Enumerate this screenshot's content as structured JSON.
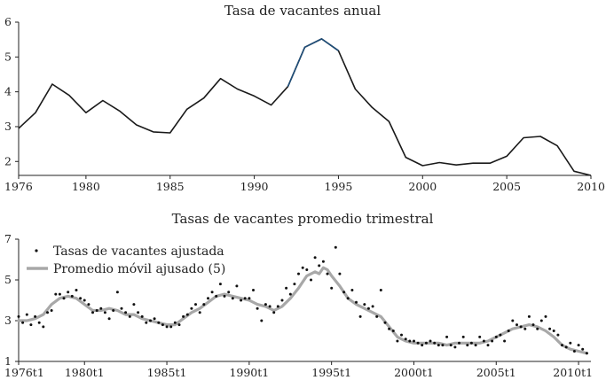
{
  "chart_data": [
    {
      "type": "line",
      "title": "Tasa de vacantes anual",
      "xlabel": "",
      "ylabel": "",
      "xlim": [
        1976,
        2010
      ],
      "ylim": [
        1.6,
        6
      ],
      "x_ticks": [
        1976,
        1980,
        1985,
        1990,
        1995,
        2000,
        2005,
        2010
      ],
      "x_tick_labels": [
        "1976",
        "1980",
        "1985",
        "1990",
        "1995",
        "2000",
        "2005",
        "2010"
      ],
      "y_ticks": [
        2,
        3,
        4,
        5,
        6
      ],
      "y_tick_labels": [
        "2",
        "3",
        "4",
        "5",
        "6"
      ],
      "series": [
        {
          "name": "Tasa de vacantes anual",
          "color": "#1a1a1a",
          "highlight_color": "#1f4e79",
          "highlight_range": [
            1992,
            1995
          ],
          "x": [
            1976,
            1977,
            1978,
            1979,
            1980,
            1981,
            1982,
            1983,
            1984,
            1985,
            1986,
            1987,
            1988,
            1989,
            1990,
            1991,
            1992,
            1993,
            1994,
            1995,
            1996,
            1997,
            1998,
            1999,
            2000,
            2001,
            2002,
            2003,
            2004,
            2005,
            2006,
            2007,
            2008,
            2009,
            2010
          ],
          "values": [
            2.95,
            3.4,
            4.22,
            3.9,
            3.4,
            3.75,
            3.45,
            3.05,
            2.85,
            2.82,
            3.5,
            3.82,
            4.38,
            4.08,
            3.88,
            3.62,
            4.15,
            5.28,
            5.52,
            5.18,
            4.08,
            3.55,
            3.15,
            2.12,
            1.88,
            1.97,
            1.9,
            1.95,
            1.95,
            2.15,
            2.68,
            2.72,
            2.45,
            1.72,
            1.6
          ]
        }
      ]
    },
    {
      "type": "scatter+line",
      "title": "Tasas de vacantes promedio trimestral",
      "xlabel": "",
      "ylabel": "",
      "xlim": [
        1976,
        2010.75
      ],
      "ylim": [
        1,
        7
      ],
      "x_ticks": [
        1976,
        1980,
        1985,
        1990,
        1995,
        2000,
        2005,
        2010
      ],
      "x_tick_labels": [
        "1976t1",
        "1980t1",
        "1985t1",
        "1990t1",
        "1995t1",
        "2000t1",
        "2005t1",
        "2010t1"
      ],
      "y_ticks": [
        1,
        3,
        5,
        7
      ],
      "y_tick_labels": [
        "1",
        "3",
        "5",
        "7"
      ],
      "legend": [
        {
          "label": "Tasas de vacantes ajustada",
          "marker": "dot",
          "color": "#111111"
        },
        {
          "label": "Promedio móvil ajusado (5)",
          "marker": "line",
          "color": "#a8a8a8"
        }
      ],
      "legend_position": "top-left",
      "series": [
        {
          "name": "Tasas de vacantes ajustada",
          "kind": "scatter",
          "color": "#111111",
          "x": [
            1976.0,
            1976.25,
            1976.5,
            1976.75,
            1977.0,
            1977.25,
            1977.5,
            1977.75,
            1978.0,
            1978.25,
            1978.5,
            1978.75,
            1979.0,
            1979.25,
            1979.5,
            1979.75,
            1980.0,
            1980.25,
            1980.5,
            1980.75,
            1981.0,
            1981.25,
            1981.5,
            1981.75,
            1982.0,
            1982.25,
            1982.5,
            1982.75,
            1983.0,
            1983.25,
            1983.5,
            1983.75,
            1984.0,
            1984.25,
            1984.5,
            1984.75,
            1985.0,
            1985.25,
            1985.5,
            1985.75,
            1986.0,
            1986.25,
            1986.5,
            1986.75,
            1987.0,
            1987.25,
            1987.5,
            1987.75,
            1988.0,
            1988.25,
            1988.5,
            1988.75,
            1989.0,
            1989.25,
            1989.5,
            1989.75,
            1990.0,
            1990.25,
            1990.5,
            1990.75,
            1991.0,
            1991.25,
            1991.5,
            1991.75,
            1992.0,
            1992.25,
            1992.5,
            1992.75,
            1993.0,
            1993.25,
            1993.5,
            1993.75,
            1994.0,
            1994.25,
            1994.5,
            1994.75,
            1995.0,
            1995.25,
            1995.5,
            1995.75,
            1996.0,
            1996.25,
            1996.5,
            1996.75,
            1997.0,
            1997.25,
            1997.5,
            1997.75,
            1998.0,
            1998.25,
            1998.5,
            1998.75,
            1999.0,
            1999.25,
            1999.5,
            1999.75,
            2000.0,
            2000.25,
            2000.5,
            2000.75,
            2001.0,
            2001.25,
            2001.5,
            2001.75,
            2002.0,
            2002.25,
            2002.5,
            2002.75,
            2003.0,
            2003.25,
            2003.5,
            2003.75,
            2004.0,
            2004.25,
            2004.5,
            2004.75,
            2005.0,
            2005.25,
            2005.5,
            2005.75,
            2006.0,
            2006.25,
            2006.5,
            2006.75,
            2007.0,
            2007.25,
            2007.5,
            2007.75,
            2008.0,
            2008.25,
            2008.5,
            2008.75,
            2009.0,
            2009.25,
            2009.5,
            2009.75,
            2010.0,
            2010.25,
            2010.5
          ],
          "values": [
            3.2,
            2.9,
            3.3,
            2.8,
            3.2,
            2.9,
            2.7,
            3.4,
            3.5,
            4.3,
            4.3,
            4.1,
            4.4,
            4.2,
            4.5,
            4.1,
            4.0,
            3.8,
            3.4,
            3.5,
            3.6,
            3.4,
            3.1,
            3.5,
            4.4,
            3.6,
            3.4,
            3.2,
            3.8,
            3.4,
            3.2,
            2.9,
            3.0,
            3.1,
            2.9,
            2.8,
            2.7,
            2.7,
            2.9,
            2.8,
            3.2,
            3.3,
            3.6,
            3.8,
            3.4,
            3.8,
            4.1,
            4.4,
            4.2,
            4.8,
            4.2,
            4.4,
            4.1,
            4.7,
            4.0,
            4.1,
            4.1,
            4.5,
            3.6,
            3.0,
            3.8,
            3.7,
            3.4,
            3.7,
            4.0,
            4.6,
            4.3,
            4.8,
            5.3,
            5.6,
            5.5,
            5.0,
            6.1,
            5.7,
            5.9,
            5.3,
            4.6,
            6.6,
            5.3,
            4.4,
            4.1,
            4.5,
            3.9,
            3.2,
            3.8,
            3.6,
            3.7,
            3.2,
            4.5,
            2.9,
            2.6,
            2.5,
            2.0,
            2.3,
            2.1,
            2.0,
            2.0,
            1.9,
            1.8,
            1.9,
            2.0,
            1.9,
            1.8,
            1.8,
            2.2,
            1.8,
            1.7,
            1.9,
            2.2,
            1.8,
            1.9,
            1.8,
            2.2,
            2.0,
            1.8,
            2.0,
            2.2,
            2.3,
            2.0,
            2.5,
            3.0,
            2.8,
            2.7,
            2.6,
            3.2,
            2.8,
            2.6,
            3.0,
            3.2,
            2.6,
            2.5,
            2.3,
            1.8,
            1.7,
            1.9,
            1.5,
            1.8,
            1.6,
            1.4
          ]
        },
        {
          "name": "Promedio móvil ajusado (5)",
          "kind": "line",
          "color": "#a8a8a8",
          "x": [
            1976.0,
            1976.5,
            1977.0,
            1977.5,
            1978.0,
            1978.5,
            1979.0,
            1979.5,
            1980.0,
            1980.5,
            1981.0,
            1981.5,
            1982.0,
            1982.5,
            1983.0,
            1983.5,
            1984.0,
            1984.5,
            1985.0,
            1985.5,
            1986.0,
            1986.5,
            1987.0,
            1987.5,
            1988.0,
            1988.5,
            1989.0,
            1989.5,
            1990.0,
            1990.5,
            1991.0,
            1991.5,
            1992.0,
            1992.5,
            1993.0,
            1993.5,
            1994.0,
            1994.25,
            1994.5,
            1994.75,
            1995.0,
            1995.5,
            1996.0,
            1996.5,
            1997.0,
            1997.5,
            1998.0,
            1998.5,
            1999.0,
            1999.5,
            2000.0,
            2000.5,
            2001.0,
            2001.5,
            2002.0,
            2002.5,
            2003.0,
            2003.5,
            2004.0,
            2004.5,
            2005.0,
            2005.5,
            2006.0,
            2006.5,
            2007.0,
            2007.5,
            2008.0,
            2008.5,
            2009.0,
            2009.5,
            2010.0,
            2010.5
          ],
          "values": [
            3.0,
            3.0,
            3.1,
            3.3,
            3.8,
            4.1,
            4.2,
            4.1,
            3.8,
            3.5,
            3.5,
            3.6,
            3.5,
            3.3,
            3.3,
            3.1,
            3.0,
            2.9,
            2.8,
            2.8,
            3.1,
            3.4,
            3.6,
            3.9,
            4.2,
            4.3,
            4.2,
            4.1,
            4.0,
            3.8,
            3.7,
            3.5,
            3.7,
            4.1,
            4.6,
            5.2,
            5.4,
            5.3,
            5.6,
            5.5,
            5.2,
            4.7,
            4.1,
            3.8,
            3.6,
            3.4,
            3.2,
            2.7,
            2.2,
            2.0,
            1.9,
            1.9,
            1.9,
            1.9,
            1.8,
            1.9,
            1.9,
            1.9,
            1.9,
            2.0,
            2.2,
            2.4,
            2.6,
            2.7,
            2.8,
            2.7,
            2.5,
            2.2,
            1.8,
            1.6,
            1.5,
            1.4
          ]
        }
      ]
    }
  ]
}
